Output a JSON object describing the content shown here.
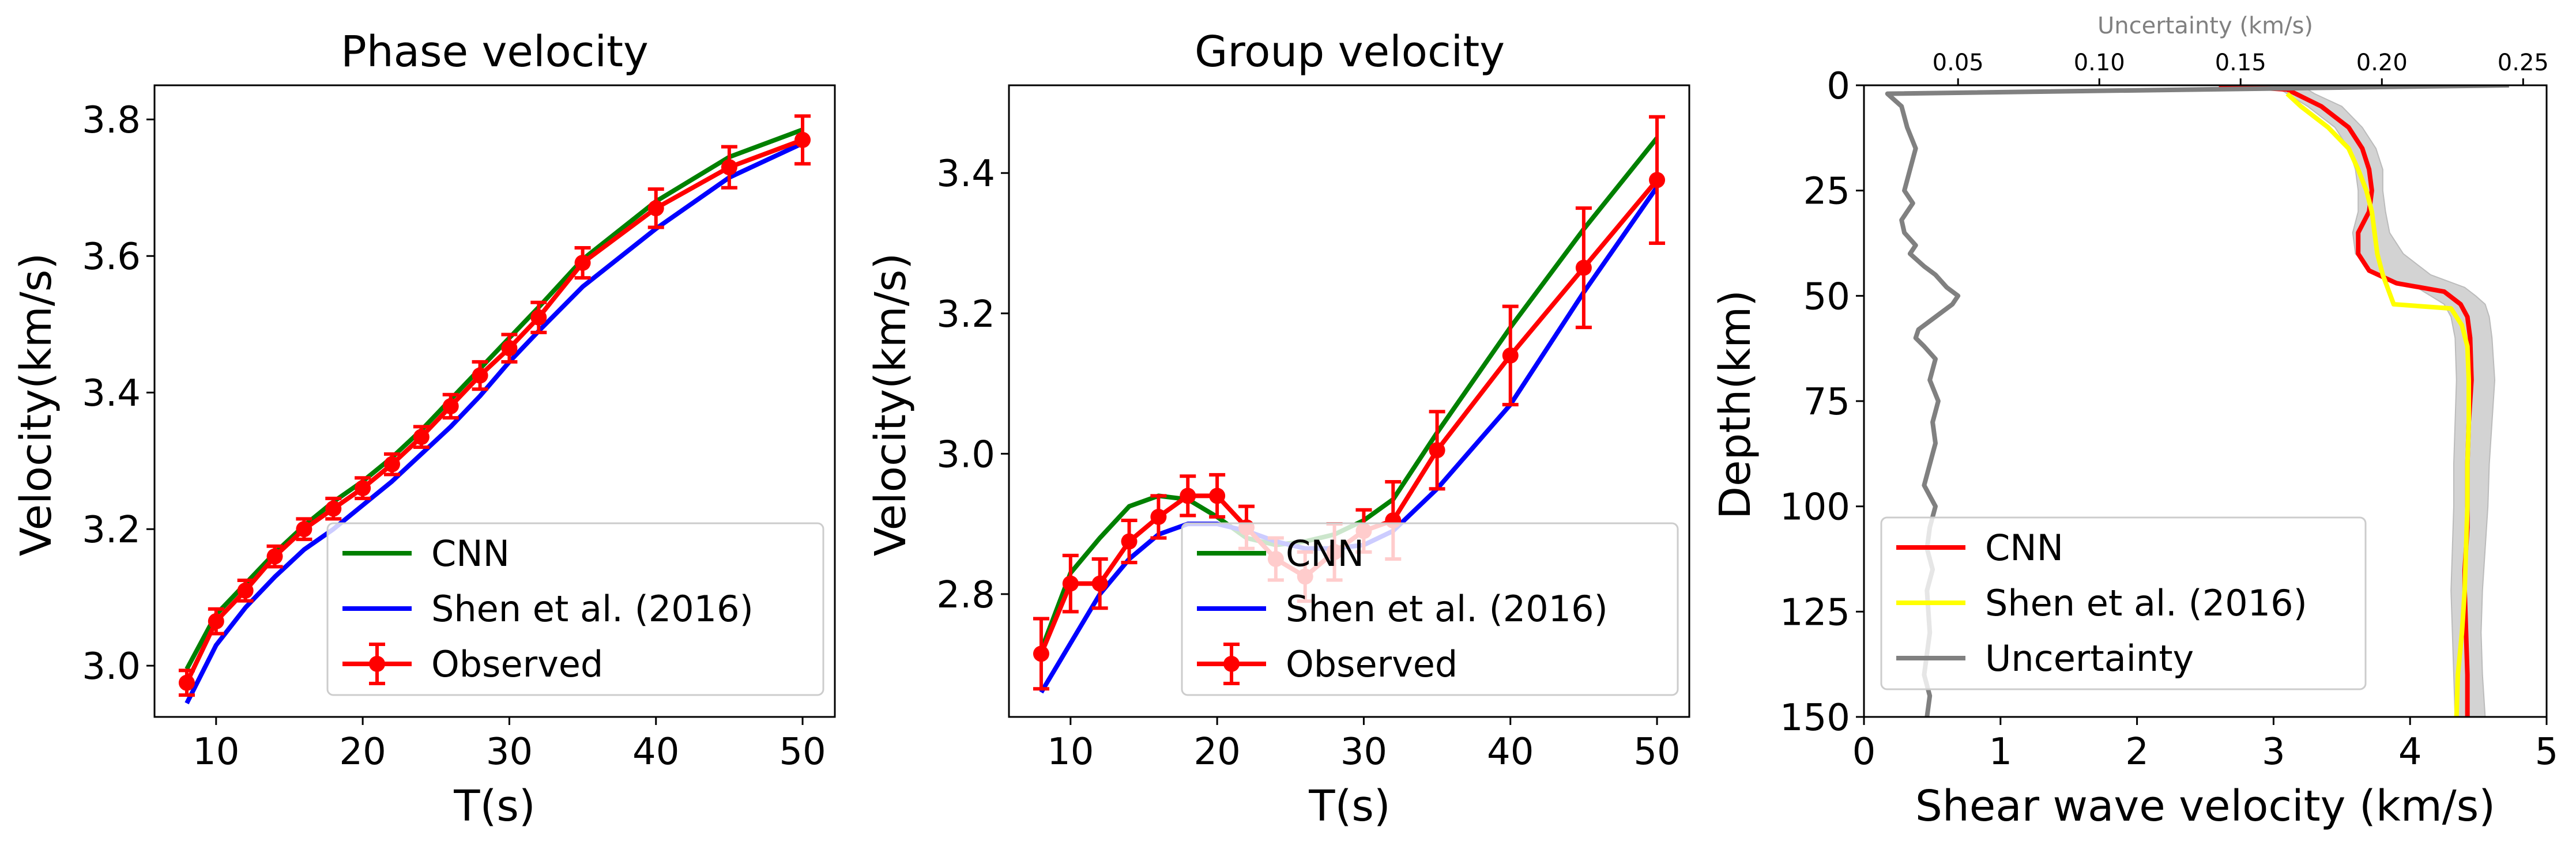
{
  "chart_data": [
    {
      "type": "line",
      "title": "Phase velocity",
      "xlabel": "T(s)",
      "ylabel": "Velocity(km/s)",
      "xlim": [
        5.8,
        52.2
      ],
      "ylim": [
        2.925,
        3.85
      ],
      "xticks": [
        10,
        20,
        30,
        40,
        50
      ],
      "yticks": [
        3.0,
        3.2,
        3.4,
        3.6,
        3.8
      ],
      "ytick_labels": [
        "3.0",
        "3.2",
        "3.4",
        "3.6",
        "3.8"
      ],
      "legend_position": "lower-right",
      "series": [
        {
          "name": "CNN",
          "color": "#008000",
          "x": [
            8,
            10,
            12,
            14,
            16,
            18,
            20,
            22,
            24,
            26,
            28,
            30,
            32,
            35,
            40,
            45,
            50
          ],
          "y": [
            2.995,
            3.075,
            3.12,
            3.165,
            3.205,
            3.24,
            3.27,
            3.305,
            3.345,
            3.39,
            3.435,
            3.48,
            3.525,
            3.595,
            3.68,
            3.745,
            3.785
          ]
        },
        {
          "name": "Shen et al. (2016)",
          "color": "#0000ff",
          "x": [
            8,
            10,
            12,
            14,
            16,
            18,
            20,
            22,
            24,
            26,
            28,
            30,
            32,
            35,
            40,
            45,
            50
          ],
          "y": [
            2.945,
            3.03,
            3.085,
            3.13,
            3.17,
            3.2,
            3.235,
            3.27,
            3.31,
            3.35,
            3.395,
            3.445,
            3.49,
            3.555,
            3.64,
            3.715,
            3.765
          ]
        },
        {
          "name": "Observed",
          "color": "#ff0000",
          "x": [
            8,
            10,
            12,
            14,
            16,
            18,
            20,
            22,
            24,
            26,
            28,
            30,
            32,
            35,
            40,
            45,
            50
          ],
          "y": [
            2.975,
            3.065,
            3.11,
            3.16,
            3.2,
            3.23,
            3.26,
            3.295,
            3.335,
            3.38,
            3.425,
            3.465,
            3.51,
            3.59,
            3.67,
            3.73,
            3.77
          ],
          "error": [
            0.018,
            0.018,
            0.015,
            0.015,
            0.015,
            0.015,
            0.015,
            0.015,
            0.015,
            0.017,
            0.02,
            0.02,
            0.022,
            0.022,
            0.028,
            0.03,
            0.035
          ]
        }
      ]
    },
    {
      "type": "line",
      "title": "Group velocity",
      "xlabel": "T(s)",
      "ylabel": "Velocity(km/s)",
      "xlim": [
        5.8,
        52.2
      ],
      "ylim": [
        2.625,
        3.525
      ],
      "xticks": [
        10,
        20,
        30,
        40,
        50
      ],
      "yticks": [
        2.8,
        3.0,
        3.2,
        3.4
      ],
      "ytick_labels": [
        "2.8",
        "3.0",
        "3.2",
        "3.4"
      ],
      "legend_position": "lower-right",
      "series": [
        {
          "name": "CNN",
          "color": "#008000",
          "x": [
            8,
            10,
            12,
            14,
            16,
            18,
            20,
            22,
            24,
            26,
            28,
            30,
            32,
            35,
            40,
            45,
            50
          ],
          "y": [
            2.72,
            2.83,
            2.88,
            2.925,
            2.94,
            2.935,
            2.91,
            2.88,
            2.87,
            2.875,
            2.885,
            2.905,
            2.935,
            3.03,
            3.18,
            3.32,
            3.45
          ]
        },
        {
          "name": "Shen et al. (2016)",
          "color": "#0000ff",
          "x": [
            8,
            10,
            12,
            14,
            16,
            18,
            20,
            22,
            24,
            26,
            28,
            30,
            32,
            35,
            40,
            45,
            50
          ],
          "y": [
            2.66,
            2.73,
            2.8,
            2.85,
            2.885,
            2.9,
            2.9,
            2.89,
            2.875,
            2.865,
            2.865,
            2.87,
            2.89,
            2.95,
            3.07,
            3.23,
            3.38
          ]
        },
        {
          "name": "Observed",
          "color": "#ff0000",
          "x": [
            8,
            10,
            12,
            14,
            16,
            18,
            20,
            22,
            24,
            26,
            28,
            30,
            32,
            35,
            40,
            45,
            50
          ],
          "y": [
            2.715,
            2.815,
            2.815,
            2.875,
            2.91,
            2.94,
            2.94,
            2.895,
            2.85,
            2.825,
            2.86,
            2.89,
            2.905,
            3.005,
            3.14,
            3.265,
            3.39
          ],
          "error": [
            0.05,
            0.04,
            0.035,
            0.03,
            0.03,
            0.028,
            0.03,
            0.03,
            0.03,
            0.035,
            0.04,
            0.03,
            0.055,
            0.055,
            0.07,
            0.085,
            0.09
          ]
        }
      ]
    },
    {
      "type": "line",
      "xlabel": "Shear wave velocity (km/s)",
      "ylabel": "Depth(km)",
      "xlim": [
        0,
        5
      ],
      "ylim": [
        150,
        0
      ],
      "xticks": [
        0,
        1,
        2,
        3,
        4,
        5
      ],
      "yticks": [
        0,
        25,
        50,
        75,
        100,
        125,
        150
      ],
      "top_axis": {
        "label": "Uncertainty (km/s)",
        "xlim": [
          0.0167,
          0.2583
        ],
        "xticks": [
          0.05,
          0.1,
          0.15,
          0.2,
          0.25
        ],
        "xtick_labels": [
          "0.05",
          "0.10",
          "0.15",
          "0.20",
          "0.25"
        ]
      },
      "legend_position": "lower-left",
      "band": {
        "color": "#d3d3d3",
        "depth": [
          0,
          2,
          5,
          10,
          15,
          20,
          25,
          30,
          35,
          40,
          45,
          48,
          50,
          52,
          55,
          60,
          70,
          80,
          90,
          100,
          110,
          120,
          130,
          140,
          150
        ],
        "low": [
          3.0,
          3.1,
          3.25,
          3.45,
          3.55,
          3.6,
          3.62,
          3.62,
          3.58,
          3.6,
          3.75,
          4.05,
          4.15,
          4.25,
          4.3,
          4.33,
          4.34,
          4.33,
          4.32,
          4.32,
          4.31,
          4.3,
          4.31,
          4.32,
          4.33
        ],
        "high": [
          3.2,
          3.3,
          3.5,
          3.65,
          3.75,
          3.8,
          3.8,
          3.82,
          3.85,
          3.95,
          4.15,
          4.4,
          4.48,
          4.55,
          4.58,
          4.6,
          4.62,
          4.6,
          4.58,
          4.57,
          4.55,
          4.53,
          4.52,
          4.53,
          4.55
        ]
      },
      "series": [
        {
          "name": "CNN",
          "color": "#ff0000",
          "x": [
            2.6,
            3.1,
            3.35,
            3.55,
            3.65,
            3.7,
            3.72,
            3.7,
            3.62,
            3.62,
            3.7,
            3.9,
            4.25,
            4.37,
            4.42,
            4.44,
            4.45,
            4.43,
            4.42,
            4.42,
            4.42,
            4.41,
            4.4,
            4.4,
            4.41,
            4.42,
            4.42,
            4.42
          ],
          "depth": [
            0,
            1,
            5,
            10,
            15,
            20,
            25,
            30,
            35,
            40,
            44,
            47,
            49,
            52,
            55,
            60,
            70,
            80,
            90,
            100,
            105,
            110,
            115,
            120,
            130,
            140,
            145,
            150
          ]
        },
        {
          "name": "Shen et al. (2016)",
          "color": "#ffff00",
          "x": [
            3.1,
            3.2,
            3.4,
            3.55,
            3.62,
            3.68,
            3.72,
            3.74,
            3.76,
            3.8,
            3.88,
            4.3,
            4.38,
            4.42,
            4.43,
            4.43,
            4.42,
            4.42,
            4.41,
            4.4,
            4.38,
            4.35,
            4.34
          ],
          "depth": [
            2,
            5,
            10,
            15,
            20,
            25,
            30,
            35,
            40,
            45,
            52,
            53,
            57,
            62,
            70,
            80,
            90,
            100,
            110,
            120,
            130,
            140,
            150
          ]
        },
        {
          "name": "Uncertainty",
          "color": "#808080",
          "x": [
            0.245,
            0.025,
            0.03,
            0.032,
            0.035,
            0.033,
            0.031,
            0.034,
            0.032,
            0.03,
            0.031,
            0.035,
            0.033,
            0.038,
            0.042,
            0.046,
            0.05,
            0.048,
            0.042,
            0.036,
            0.035,
            0.038,
            0.042,
            0.04,
            0.043,
            0.041,
            0.042,
            0.04,
            0.038,
            0.042,
            0.04,
            0.039,
            0.041,
            0.039,
            0.04,
            0.038,
            0.04,
            0.039
          ],
          "depth": [
            0,
            2,
            5,
            10,
            15,
            20,
            25,
            28,
            30,
            32,
            35,
            38,
            40,
            43,
            45,
            48,
            50,
            52,
            55,
            58,
            60,
            62,
            65,
            70,
            75,
            80,
            85,
            90,
            95,
            100,
            105,
            110,
            115,
            120,
            130,
            140,
            145,
            150
          ]
        }
      ]
    }
  ]
}
